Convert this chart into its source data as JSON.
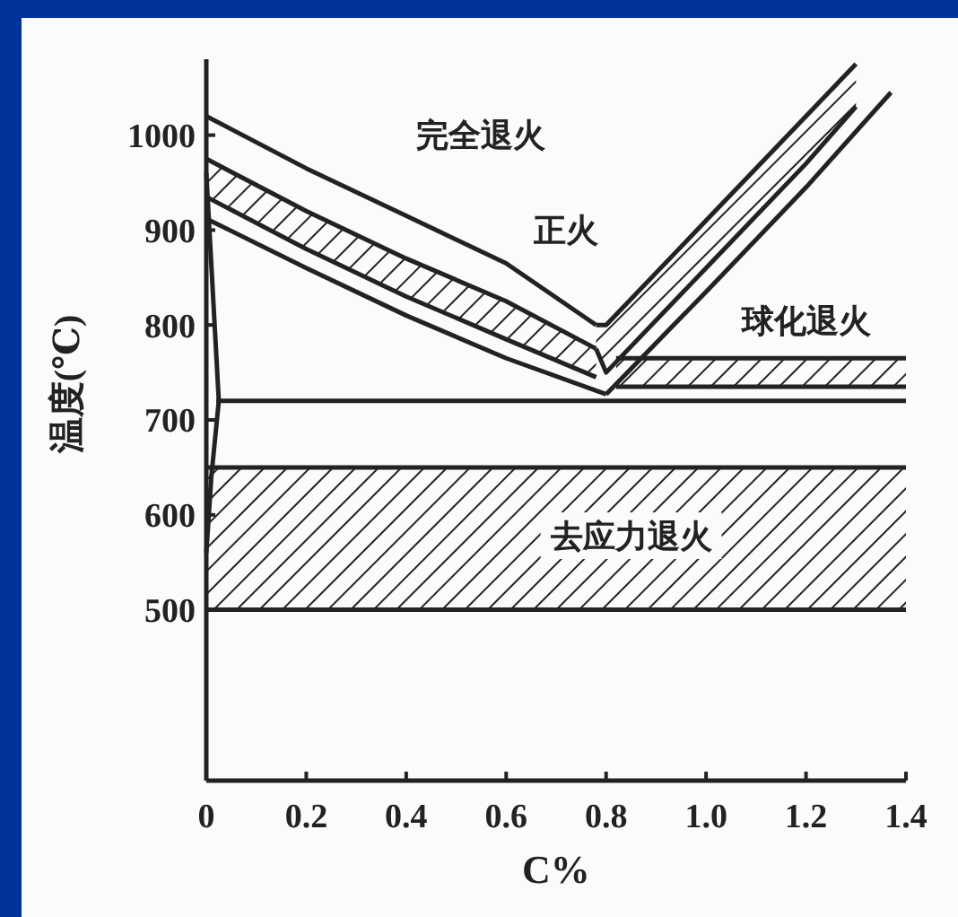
{
  "chart_data": {
    "type": "line",
    "xlabel": "C%",
    "ylabel": "温度(℃)",
    "xlim": [
      0,
      1.4
    ],
    "ylim": [
      320,
      1080
    ],
    "xticks": [
      0,
      0.2,
      0.4,
      0.6,
      0.8,
      {
        "value": 1,
        "label": "1.0"
      },
      1.2,
      1.4
    ],
    "yticks": [
      500,
      600,
      700,
      800,
      900,
      1000
    ],
    "grid": false,
    "series": [
      {
        "type": "line",
        "color": "#222222",
        "x": [
          0,
          1.4
        ],
        "values": [
          500,
          500
        ]
      },
      {
        "type": "line",
        "color": "#222222",
        "x": [
          0,
          1.4
        ],
        "values": [
          650,
          650
        ]
      },
      {
        "type": "line",
        "color": "#222222",
        "x": [
          0.82,
          1.4
        ],
        "values": [
          735,
          735
        ]
      },
      {
        "type": "line",
        "color": "#222222",
        "x": [
          0.82,
          1.4
        ],
        "values": [
          765,
          765
        ]
      },
      {
        "type": "line",
        "color": "#222222",
        "x": [
          0,
          0.2,
          0.4,
          0.6,
          0.78
        ],
        "values": [
          935,
          880,
          830,
          785,
          745
        ]
      },
      {
        "type": "line",
        "color": "#222222",
        "x": [
          0,
          0.2,
          0.4,
          0.6,
          0.78
        ],
        "values": [
          975,
          920,
          870,
          825,
          775
        ]
      },
      {
        "type": "line",
        "color": "#222222",
        "x": [
          0.78,
          0.8,
          1.0,
          1.2,
          1.3
        ],
        "values": [
          775,
          750,
          860,
          970,
          1030
        ]
      },
      {
        "type": "line",
        "color": "#222222",
        "x": [
          0.78,
          0.8,
          1.0,
          1.2,
          1.3
        ],
        "values": [
          800,
          800,
          910,
          1020,
          1075
        ]
      },
      {
        "type": "line",
        "color": "#222222",
        "x": [
          0,
          0.2,
          0.4,
          0.6,
          0.78
        ],
        "values": [
          1020,
          965,
          915,
          865,
          800
        ]
      },
      {
        "type": "line",
        "color": "#222222",
        "x": [
          0,
          0.2,
          0.4,
          0.6,
          0.8
        ],
        "values": [
          912,
          860,
          810,
          765,
          727
        ]
      },
      {
        "type": "line",
        "color": "#222222",
        "x": [
          0.8,
          1.0,
          1.2,
          1.37
        ],
        "values": [
          727,
          835,
          945,
          1045
        ]
      },
      {
        "type": "line",
        "color": "#222222",
        "x": [
          0.02,
          1.4
        ],
        "values": [
          720,
          720
        ]
      },
      {
        "type": "line",
        "color": "#222222",
        "x": [
          0,
          0.025,
          0.01,
          0
        ],
        "values": [
          960,
          720,
          640,
          560
        ]
      }
    ],
    "annotations": [
      "完全退火",
      "正火",
      "球化退火",
      "去应力退火"
    ]
  }
}
